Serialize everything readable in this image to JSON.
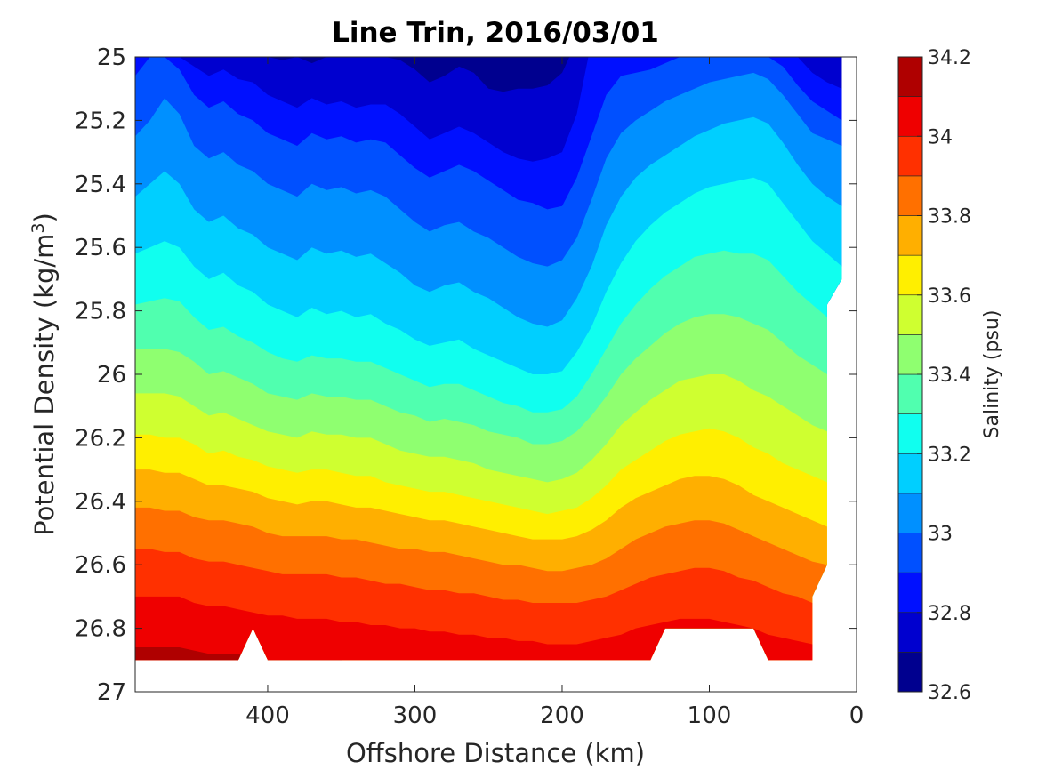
{
  "chart_data": {
    "type": "contour",
    "title": "Line Trin, 2016/03/01",
    "xlabel": "Offshore Distance (km)",
    "ylabel_main": "Potential Density (kg/m",
    "ylabel_sup": "3",
    "ylabel_end": ")",
    "x_reversed": true,
    "xlim": [
      490,
      0
    ],
    "ylim": [
      25,
      27
    ],
    "y_reversed": true,
    "xticks": [
      400,
      300,
      200,
      100,
      0
    ],
    "xtick_labels": [
      "400",
      "300",
      "200",
      "100",
      "0"
    ],
    "yticks": [
      25,
      25.2,
      25.4,
      25.6,
      25.8,
      26,
      26.2,
      26.4,
      26.6,
      26.8,
      27
    ],
    "ytick_labels": [
      "25",
      "25.2",
      "25.4",
      "25.6",
      "25.8",
      "26",
      "26.2",
      "26.4",
      "26.6",
      "26.8",
      "27"
    ],
    "colorbar": {
      "label": "Salinity (psu)",
      "range": [
        32.6,
        34.2
      ],
      "levels": [
        32.6,
        32.7,
        32.8,
        32.9,
        33.0,
        33.1,
        33.2,
        33.3,
        33.4,
        33.5,
        33.6,
        33.7,
        33.8,
        33.9,
        34.0,
        34.1,
        34.2
      ],
      "tick_values": [
        32.6,
        32.8,
        33,
        33.2,
        33.4,
        33.6,
        33.8,
        34,
        34.2
      ],
      "tick_labels": [
        "32.6",
        "32.8",
        "33",
        "33.2",
        "33.4",
        "33.6",
        "33.8",
        "34",
        "34.2"
      ],
      "colors": [
        "#00008f",
        "#0000cf",
        "#0010ff",
        "#0050ff",
        "#0090ff",
        "#00cfff",
        "#10ffef",
        "#50ffaf",
        "#8fff70",
        "#cfff30",
        "#ffef00",
        "#ffaf00",
        "#ff7000",
        "#ff3000",
        "#ef0000",
        "#af0000"
      ]
    },
    "contour_boundaries_x": [
      490,
      480,
      470,
      460,
      450,
      440,
      430,
      420,
      410,
      400,
      390,
      380,
      370,
      360,
      350,
      340,
      330,
      320,
      310,
      300,
      290,
      280,
      270,
      260,
      250,
      240,
      230,
      220,
      210,
      200,
      190,
      180,
      170,
      160,
      150,
      140,
      130,
      120,
      110,
      100,
      90,
      80,
      70,
      60,
      50,
      40,
      30,
      20,
      10
    ],
    "contour_boundaries": [
      {
        "value": 32.7,
        "y": [
          null,
          null,
          null,
          null,
          null,
          null,
          null,
          null,
          null,
          25.0,
          25.01,
          25.0,
          25.02,
          25.0,
          25.0,
          25.0,
          25.0,
          25.0,
          25.01,
          25.04,
          25.08,
          25.06,
          25.03,
          25.05,
          25.1,
          25.11,
          25.1,
          25.1,
          25.09,
          25.05,
          null,
          null,
          null,
          null,
          null,
          null,
          null,
          null,
          null,
          null,
          null,
          null,
          null,
          null,
          null,
          null,
          null,
          null,
          null
        ]
      },
      {
        "value": 32.8,
        "y": [
          null,
          null,
          25.0,
          25.0,
          25.03,
          25.06,
          25.04,
          25.07,
          25.08,
          25.12,
          25.14,
          25.16,
          25.13,
          25.15,
          25.14,
          25.16,
          25.15,
          25.15,
          25.18,
          25.22,
          25.26,
          25.24,
          25.22,
          25.24,
          25.27,
          25.3,
          25.32,
          25.33,
          25.32,
          25.3,
          25.18,
          null,
          null,
          null,
          null,
          null,
          null,
          null,
          null,
          null,
          null,
          null,
          null,
          null,
          null,
          25.0,
          25.05,
          25.08,
          25.1
        ]
      },
      {
        "value": 32.9,
        "y": [
          25.06,
          25.0,
          25.0,
          25.04,
          25.12,
          25.16,
          25.14,
          25.18,
          25.2,
          25.24,
          25.26,
          25.28,
          25.24,
          25.26,
          25.25,
          25.27,
          25.26,
          25.27,
          25.31,
          25.35,
          25.38,
          25.36,
          25.34,
          25.36,
          25.39,
          25.42,
          25.45,
          25.46,
          25.48,
          25.47,
          25.38,
          25.25,
          25.12,
          25.06,
          25.05,
          25.04,
          25.02,
          25.0,
          25.0,
          25.0,
          25.0,
          25.0,
          25.0,
          25.0,
          25.03,
          25.09,
          25.14,
          25.17,
          25.2
        ]
      },
      {
        "value": 33.0,
        "y": [
          25.25,
          25.2,
          25.13,
          25.18,
          25.28,
          25.32,
          25.3,
          25.34,
          25.36,
          25.4,
          25.42,
          25.44,
          25.4,
          25.42,
          25.41,
          25.43,
          25.42,
          25.44,
          25.48,
          25.52,
          25.55,
          25.53,
          25.52,
          25.55,
          25.57,
          25.6,
          25.63,
          25.65,
          25.66,
          25.64,
          25.57,
          25.45,
          25.32,
          25.24,
          25.2,
          25.17,
          25.14,
          25.12,
          25.1,
          25.08,
          25.07,
          25.06,
          25.05,
          25.07,
          25.12,
          25.18,
          25.24,
          25.26,
          25.28
        ]
      },
      {
        "value": 33.1,
        "y": [
          25.44,
          25.4,
          25.36,
          25.4,
          25.48,
          25.52,
          25.5,
          25.54,
          25.56,
          25.6,
          25.62,
          25.64,
          25.6,
          25.62,
          25.61,
          25.63,
          25.62,
          25.65,
          25.68,
          25.72,
          25.74,
          25.72,
          25.71,
          25.74,
          25.76,
          25.79,
          25.82,
          25.84,
          25.85,
          25.83,
          25.76,
          25.66,
          25.53,
          25.44,
          25.38,
          25.34,
          25.31,
          25.28,
          25.25,
          25.23,
          25.21,
          25.2,
          25.19,
          25.21,
          25.27,
          25.34,
          25.4,
          25.44,
          25.47
        ]
      },
      {
        "value": 33.2,
        "y": [
          25.62,
          25.6,
          25.58,
          25.6,
          25.66,
          25.7,
          25.68,
          25.72,
          25.74,
          25.78,
          25.8,
          25.82,
          25.79,
          25.81,
          25.8,
          25.82,
          25.81,
          25.84,
          25.86,
          25.89,
          25.91,
          25.9,
          25.89,
          25.92,
          25.94,
          25.96,
          25.98,
          26.0,
          26.0,
          25.99,
          25.93,
          25.85,
          25.74,
          25.65,
          25.58,
          25.53,
          25.49,
          25.46,
          25.43,
          25.41,
          25.4,
          25.39,
          25.38,
          25.4,
          25.46,
          25.52,
          25.58,
          25.62,
          25.66
        ]
      },
      {
        "value": 33.3,
        "y": [
          25.78,
          25.77,
          25.76,
          25.77,
          25.82,
          25.86,
          25.85,
          25.88,
          25.9,
          25.93,
          25.95,
          25.96,
          25.94,
          25.95,
          25.95,
          25.96,
          25.96,
          25.98,
          26.0,
          26.02,
          26.04,
          26.03,
          26.03,
          26.05,
          26.07,
          26.09,
          26.1,
          26.12,
          26.12,
          26.11,
          26.07,
          26.0,
          25.92,
          25.84,
          25.78,
          25.73,
          25.69,
          25.66,
          25.63,
          25.62,
          25.61,
          25.62,
          25.62,
          25.64,
          25.69,
          25.74,
          25.78,
          25.82,
          25.85
        ]
      },
      {
        "value": 33.4,
        "y": [
          25.92,
          25.92,
          25.92,
          25.93,
          25.96,
          26.0,
          25.99,
          26.01,
          26.03,
          26.06,
          26.07,
          26.08,
          26.06,
          26.07,
          26.07,
          26.08,
          26.08,
          26.1,
          26.12,
          26.13,
          26.15,
          26.14,
          26.15,
          26.16,
          26.18,
          26.19,
          26.2,
          26.22,
          26.22,
          26.21,
          26.18,
          26.13,
          26.07,
          26.0,
          25.95,
          25.91,
          25.87,
          25.84,
          25.82,
          25.81,
          25.81,
          25.82,
          25.84,
          25.86,
          25.9,
          25.94,
          25.97,
          26.0,
          26.03
        ]
      },
      {
        "value": 33.5,
        "y": [
          26.06,
          26.06,
          26.06,
          26.07,
          26.1,
          26.13,
          26.12,
          26.14,
          26.16,
          26.18,
          26.19,
          26.2,
          26.18,
          26.19,
          26.19,
          26.2,
          26.2,
          26.22,
          26.24,
          26.25,
          26.26,
          26.26,
          26.27,
          26.28,
          26.3,
          26.31,
          26.32,
          26.33,
          26.34,
          26.33,
          26.31,
          26.27,
          26.22,
          26.16,
          26.12,
          26.08,
          26.05,
          26.02,
          26.01,
          26.0,
          26.0,
          26.02,
          26.05,
          26.07,
          26.1,
          26.13,
          26.16,
          26.18,
          26.2
        ]
      },
      {
        "value": 33.6,
        "y": [
          26.19,
          26.19,
          26.2,
          26.2,
          26.22,
          26.25,
          26.24,
          26.26,
          26.27,
          26.29,
          26.3,
          26.31,
          26.3,
          26.3,
          26.31,
          26.32,
          26.32,
          26.34,
          26.35,
          26.36,
          26.37,
          26.37,
          26.38,
          26.39,
          26.4,
          26.41,
          26.42,
          26.43,
          26.44,
          26.43,
          26.42,
          26.39,
          26.35,
          26.3,
          26.27,
          26.24,
          26.21,
          26.19,
          26.18,
          26.17,
          26.18,
          26.2,
          26.23,
          26.25,
          26.28,
          26.3,
          26.32,
          26.34,
          26.36
        ]
      },
      {
        "value": 33.7,
        "y": [
          26.3,
          26.3,
          26.31,
          26.31,
          26.33,
          26.35,
          26.35,
          26.36,
          26.37,
          26.39,
          26.4,
          26.41,
          26.4,
          26.4,
          26.41,
          26.42,
          26.42,
          26.43,
          26.44,
          26.45,
          26.46,
          26.46,
          26.47,
          26.48,
          26.49,
          26.5,
          26.51,
          26.52,
          26.52,
          26.52,
          26.51,
          26.49,
          26.46,
          26.42,
          26.39,
          26.37,
          26.35,
          26.33,
          26.32,
          26.32,
          26.33,
          26.35,
          26.38,
          26.4,
          26.42,
          26.44,
          26.46,
          26.48,
          26.5
        ]
      },
      {
        "value": 33.8,
        "y": [
          26.42,
          26.42,
          26.43,
          26.43,
          26.45,
          26.46,
          26.46,
          26.47,
          26.48,
          26.5,
          26.51,
          26.51,
          26.51,
          26.51,
          26.52,
          26.52,
          26.53,
          26.54,
          26.55,
          26.55,
          26.56,
          26.56,
          26.57,
          26.58,
          26.59,
          26.6,
          26.6,
          26.61,
          26.62,
          26.62,
          26.61,
          26.6,
          26.58,
          26.55,
          26.52,
          26.5,
          26.48,
          26.47,
          26.46,
          26.46,
          26.47,
          26.49,
          26.51,
          26.53,
          26.55,
          26.57,
          26.59,
          26.6,
          26.62
        ]
      },
      {
        "value": 33.9,
        "y": [
          26.55,
          26.55,
          26.56,
          26.56,
          26.58,
          26.59,
          26.59,
          26.6,
          26.61,
          26.62,
          26.63,
          26.63,
          26.63,
          26.63,
          26.64,
          26.64,
          26.65,
          26.66,
          26.66,
          26.67,
          26.68,
          26.68,
          26.69,
          26.69,
          26.7,
          26.71,
          26.71,
          26.72,
          26.72,
          26.72,
          26.72,
          26.71,
          26.7,
          26.68,
          26.66,
          26.64,
          26.63,
          26.62,
          26.61,
          26.61,
          26.62,
          26.64,
          26.65,
          26.67,
          26.69,
          26.7,
          26.72,
          26.73,
          26.74
        ]
      },
      {
        "value": 34.0,
        "y": [
          26.7,
          26.7,
          26.7,
          26.7,
          26.72,
          26.73,
          26.73,
          26.74,
          26.75,
          26.76,
          26.76,
          26.77,
          26.77,
          26.77,
          26.78,
          26.78,
          26.79,
          26.79,
          26.8,
          26.8,
          26.81,
          26.81,
          26.82,
          26.82,
          26.83,
          26.83,
          26.84,
          26.84,
          26.85,
          26.85,
          26.85,
          26.84,
          26.83,
          26.82,
          26.8,
          26.79,
          26.78,
          26.77,
          26.77,
          26.77,
          26.78,
          26.79,
          26.8,
          26.82,
          26.83,
          26.84,
          26.85,
          26.86,
          26.87
        ]
      },
      {
        "value": 34.1,
        "y": [
          26.86,
          26.86,
          26.86,
          26.86,
          26.87,
          26.88,
          26.88,
          26.88,
          26.89,
          26.9,
          26.9,
          26.9,
          26.9,
          26.9,
          26.9,
          26.91,
          26.91,
          26.91,
          26.92,
          26.92,
          26.92,
          26.92,
          26.93,
          26.93,
          26.93,
          26.93,
          26.94,
          26.94,
          26.94,
          26.94,
          26.94,
          26.94,
          26.93,
          26.93,
          26.92,
          26.92,
          26.91,
          26.91,
          26.91,
          26.91,
          26.91,
          26.92,
          26.92,
          26.93,
          26.93,
          26.94,
          26.94,
          26.95,
          26.95
        ]
      }
    ]
  }
}
